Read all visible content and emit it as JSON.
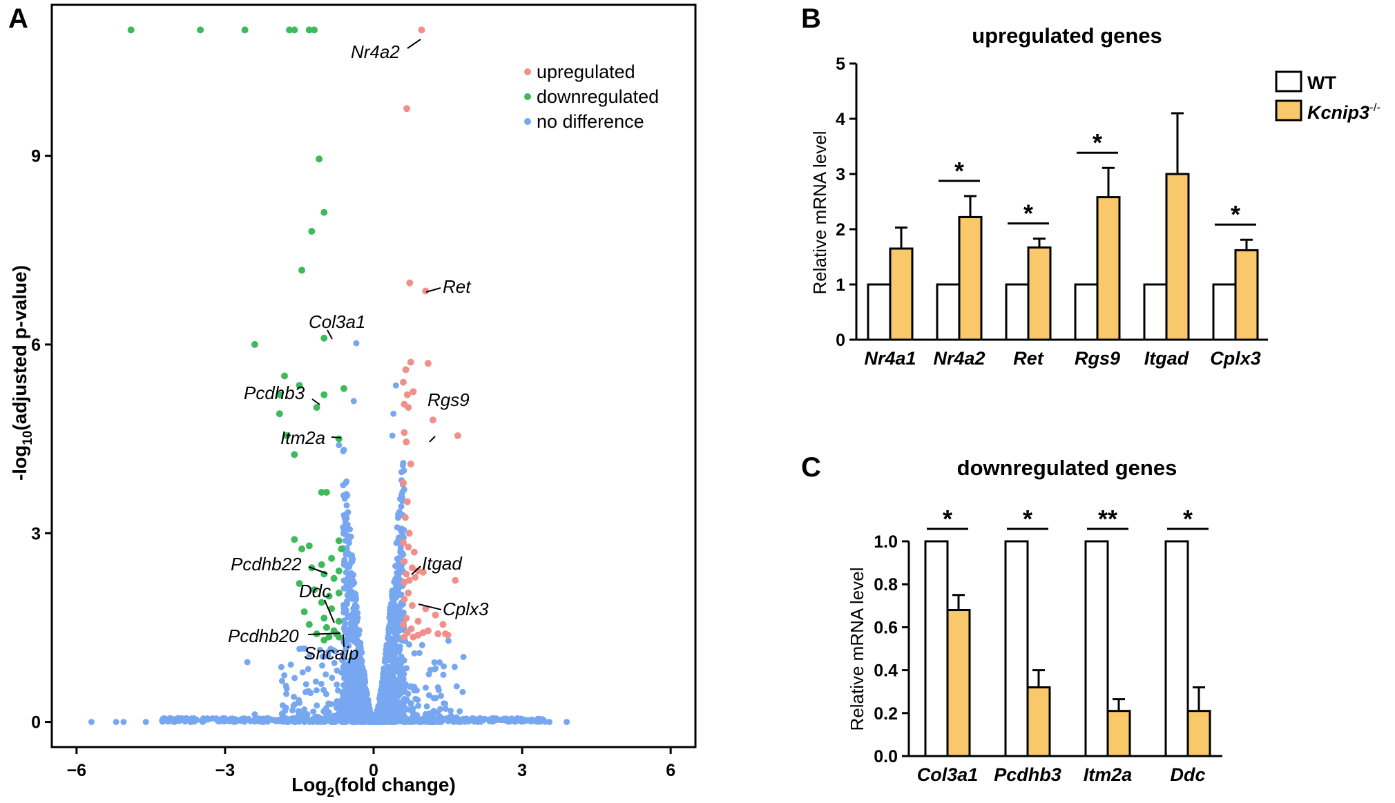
{
  "chart_data": [
    {
      "panel": "A",
      "type": "scatter",
      "title": "",
      "xlabel": "Log2(fold change)",
      "xlabel_main": "Log",
      "xlabel_sub": "2",
      "xlabel_rest": "(fold change)",
      "ylabel": "-log10(adjusted p-value)",
      "ylabel_main": "-log",
      "ylabel_sub": "10",
      "ylabel_rest": "(adjusted p-value)",
      "xlim": [
        -6.5,
        6.5
      ],
      "ylim": [
        -0.4,
        11.4
      ],
      "xticks": [
        -6,
        -3,
        0,
        3,
        6
      ],
      "xtick_labels": [
        "−6",
        "−3",
        "0",
        "3",
        "6"
      ],
      "yticks": [
        0,
        3,
        6,
        9
      ],
      "ytick_labels": [
        "0",
        "3",
        "6",
        "9"
      ],
      "legend": [
        {
          "label": "upregulated",
          "color": "#f0908a"
        },
        {
          "label": "downregulated",
          "color": "#3dbb5c"
        },
        {
          "label": "no difference",
          "color": "#77a7f0"
        }
      ],
      "series": [
        {
          "name": "upregulated",
          "color": "#f0908a",
          "points": [
            [
              0.97,
              11.0
            ],
            [
              0.67,
              9.75
            ],
            [
              0.73,
              6.98
            ],
            [
              1.05,
              6.85
            ],
            [
              1.1,
              5.7
            ],
            [
              0.75,
              5.72
            ],
            [
              0.65,
              5.6
            ],
            [
              0.6,
              5.4
            ],
            [
              0.8,
              5.25
            ],
            [
              0.68,
              5.2
            ],
            [
              0.62,
              5.05
            ],
            [
              0.7,
              5.0
            ],
            [
              1.2,
              4.8
            ],
            [
              0.62,
              4.6
            ],
            [
              0.66,
              4.45
            ],
            [
              1.7,
              4.55
            ],
            [
              0.75,
              4.1
            ],
            [
              0.6,
              3.8
            ],
            [
              0.68,
              3.5
            ],
            [
              0.64,
              3.25
            ],
            [
              0.72,
              3.0
            ],
            [
              0.6,
              2.85
            ],
            [
              0.7,
              2.78
            ],
            [
              0.82,
              2.7
            ],
            [
              0.62,
              2.55
            ],
            [
              0.78,
              2.45
            ],
            [
              0.66,
              2.35
            ],
            [
              0.9,
              2.4
            ],
            [
              0.72,
              2.25
            ],
            [
              0.62,
              2.22
            ],
            [
              0.84,
              2.3
            ],
            [
              1.0,
              2.38
            ],
            [
              1.65,
              2.25
            ],
            [
              0.7,
              2.05
            ],
            [
              0.62,
              1.95
            ],
            [
              0.78,
              1.85
            ],
            [
              1.05,
              1.8
            ],
            [
              1.25,
              1.7
            ],
            [
              0.66,
              1.65
            ],
            [
              0.9,
              1.6
            ],
            [
              0.6,
              1.55
            ],
            [
              1.4,
              1.55
            ],
            [
              0.76,
              1.48
            ],
            [
              0.68,
              1.42
            ],
            [
              1.1,
              1.45
            ],
            [
              1.3,
              1.4
            ],
            [
              1.45,
              1.4
            ],
            [
              1.5,
              1.38
            ],
            [
              0.9,
              1.38
            ],
            [
              0.62,
              1.35
            ],
            [
              0.8,
              1.35
            ],
            [
              1.0,
              1.42
            ]
          ]
        },
        {
          "name": "downregulated",
          "color": "#3dbb5c",
          "points": [
            [
              -4.9,
              11.0
            ],
            [
              -3.5,
              11.0
            ],
            [
              -2.6,
              11.0
            ],
            [
              -1.7,
              11.0
            ],
            [
              -1.6,
              11.0
            ],
            [
              -1.3,
              11.0
            ],
            [
              -1.2,
              11.0
            ],
            [
              -1.1,
              8.95
            ],
            [
              -1.0,
              8.1
            ],
            [
              -1.25,
              7.8
            ],
            [
              -1.45,
              7.18
            ],
            [
              -1.0,
              6.1
            ],
            [
              -2.4,
              6.0
            ],
            [
              -1.8,
              5.5
            ],
            [
              -1.5,
              5.35
            ],
            [
              -1.0,
              5.2
            ],
            [
              -1.9,
              5.2
            ],
            [
              -0.6,
              5.3
            ],
            [
              -1.15,
              5.0
            ],
            [
              -1.9,
              4.9
            ],
            [
              -1.75,
              4.55
            ],
            [
              -0.7,
              4.5
            ],
            [
              -1.6,
              4.25
            ],
            [
              -1.05,
              3.65
            ],
            [
              -0.95,
              3.65
            ],
            [
              -1.6,
              2.9
            ],
            [
              -1.3,
              2.8
            ],
            [
              -1.45,
              2.75
            ],
            [
              -0.7,
              2.88
            ],
            [
              -0.65,
              2.75
            ],
            [
              -0.85,
              2.6
            ],
            [
              -1.05,
              2.5
            ],
            [
              -1.25,
              2.45
            ],
            [
              -0.7,
              2.4
            ],
            [
              -1.0,
              2.35
            ],
            [
              -0.8,
              2.28
            ],
            [
              -1.5,
              2.2
            ],
            [
              -1.2,
              2.1
            ],
            [
              -0.9,
              2.0
            ],
            [
              -0.7,
              2.05
            ],
            [
              -1.05,
              1.9
            ],
            [
              -1.4,
              1.75
            ],
            [
              -0.85,
              1.8
            ],
            [
              -1.0,
              1.65
            ],
            [
              -1.3,
              1.55
            ],
            [
              -0.7,
              1.6
            ],
            [
              -0.95,
              1.5
            ],
            [
              -0.8,
              1.45
            ],
            [
              -1.15,
              1.4
            ],
            [
              -0.7,
              1.35
            ],
            [
              -0.9,
              1.35
            ],
            [
              -1.0,
              1.3
            ],
            [
              -0.75,
              1.4
            ]
          ]
        }
      ],
      "annotations": [
        "Nr4a2",
        "Ret",
        "Col3a1",
        "Pcdhb3",
        "Rgs9",
        "Itm2a",
        "Pcdhb22",
        "Itgad",
        "Ddc",
        "Cplx3",
        "Pcdhb20",
        "Sncaip"
      ]
    },
    {
      "panel": "B",
      "type": "bar",
      "title": "upregulated genes",
      "ylabel": "Relative mRNA level",
      "ylim": [
        0,
        5
      ],
      "yticks": [
        0,
        1,
        2,
        3,
        4,
        5
      ],
      "ytick_labels": [
        "0",
        "1",
        "2",
        "3",
        "4",
        "5"
      ],
      "categories": [
        "Nr4a1",
        "Nr4a2",
        "Ret",
        "Rgs9",
        "Itgad",
        "Cplx3"
      ],
      "series": [
        {
          "name": "WT",
          "values": [
            1,
            1,
            1,
            1,
            1,
            1
          ],
          "errors": [
            0,
            0,
            0,
            0,
            0,
            0
          ]
        },
        {
          "name": "Kcnip3-/-",
          "values": [
            1.65,
            2.22,
            1.67,
            2.58,
            3.0,
            1.62
          ],
          "errors": [
            0.38,
            0.38,
            0.16,
            0.53,
            1.1,
            0.19
          ]
        }
      ],
      "significance": [
        "",
        "*",
        "*",
        "*",
        "",
        "*"
      ],
      "legend_wt": "WT",
      "legend_ko_main": "Kcnip3",
      "legend_ko_sup": "-/-"
    },
    {
      "panel": "C",
      "type": "bar",
      "title": "downregulated genes",
      "ylabel": "Relative mRNA level",
      "ylim": [
        0,
        1.0
      ],
      "yticks": [
        0,
        0.2,
        0.4,
        0.6,
        0.8,
        1.0
      ],
      "ytick_labels": [
        "0.0",
        "0.2",
        "0.4",
        "0.6",
        "0.8",
        "1.0"
      ],
      "categories": [
        "Col3a1",
        "Pcdhb3",
        "Itm2a",
        "Ddc"
      ],
      "series": [
        {
          "name": "WT",
          "values": [
            1,
            1,
            1,
            1
          ],
          "errors": [
            0,
            0,
            0,
            0
          ]
        },
        {
          "name": "Kcnip3-/-",
          "values": [
            0.68,
            0.32,
            0.21,
            0.21
          ],
          "errors": [
            0.07,
            0.08,
            0.055,
            0.11
          ]
        }
      ],
      "significance": [
        "*",
        "*",
        "**",
        "*"
      ]
    }
  ],
  "panel_labels": {
    "a": "A",
    "b": "B",
    "c": "C"
  },
  "colors": {
    "up": "#f0908a",
    "down": "#3dbb5c",
    "nodiff": "#77a7f0",
    "ko_bar": "#f9c86a",
    "wt_bar": "#ffffff"
  }
}
